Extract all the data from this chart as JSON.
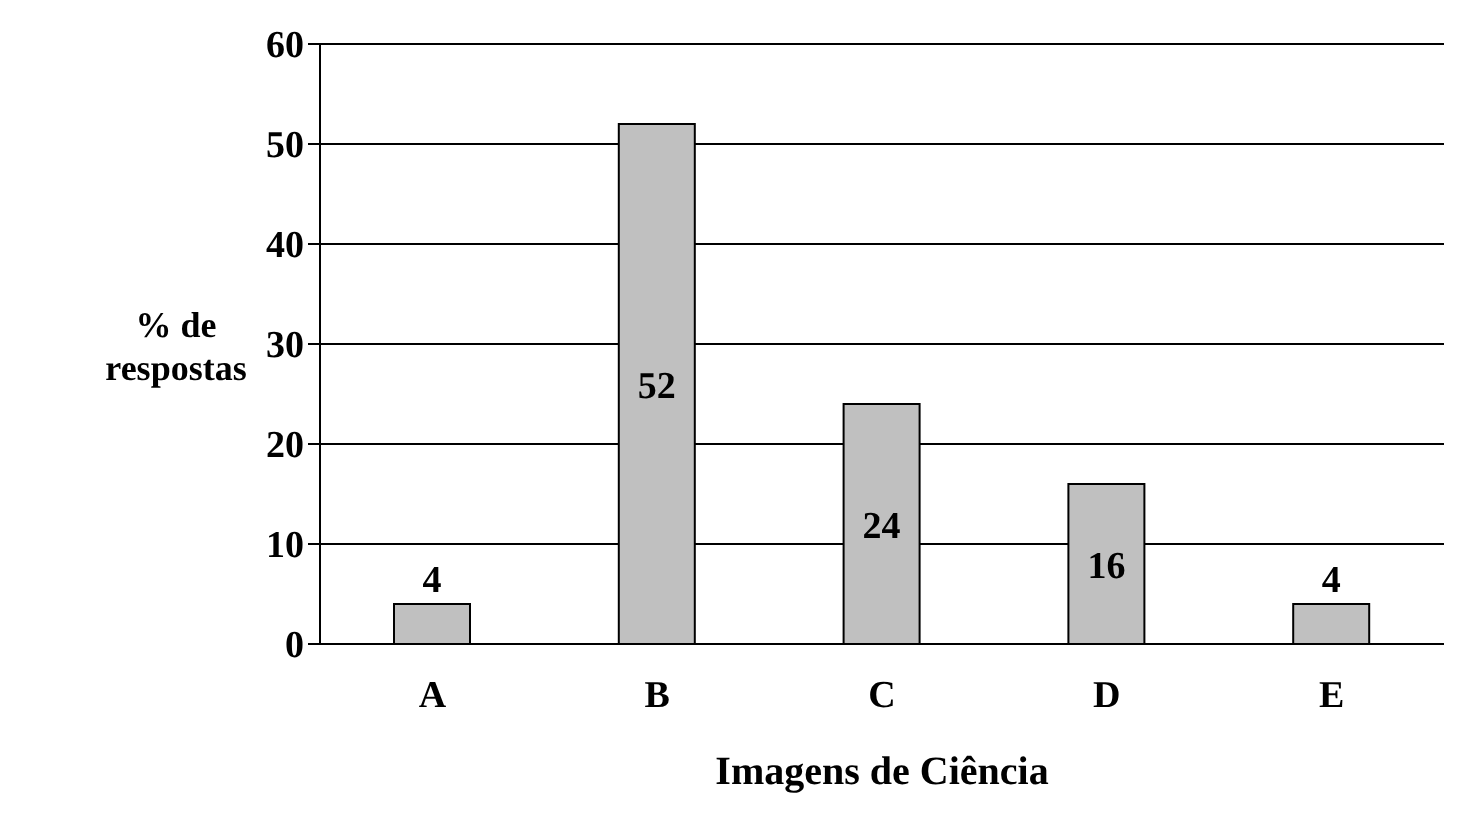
{
  "chart_data": {
    "type": "bar",
    "xlabel": "Imagens de Ciência",
    "ylabel": "% de respostas",
    "categories": [
      "A",
      "B",
      "C",
      "D",
      "E"
    ],
    "values": [
      4,
      52,
      24,
      16,
      4
    ],
    "color": "#c0c0c0",
    "ylim": [
      0,
      60
    ],
    "yticks": [
      0,
      10,
      20,
      30,
      40,
      50,
      60
    ],
    "grid": "y",
    "data_labels": true
  }
}
